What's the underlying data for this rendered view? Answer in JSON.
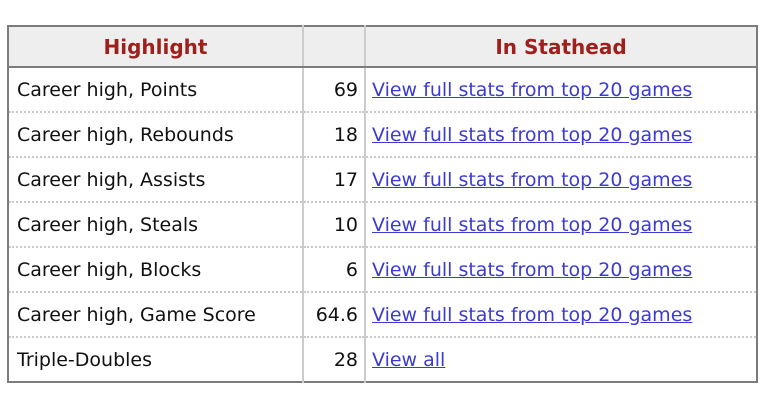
{
  "colors": {
    "accent": "#9e201c",
    "link": "#3b3bd3",
    "outer_border": "#7c7c7c",
    "cell_separator": "#cccccc",
    "row_separator": "#c9c9c9",
    "header_background": "#eeeeee"
  },
  "table": {
    "columns": [
      {
        "label": "Highlight"
      },
      {
        "label": ""
      },
      {
        "label": "In Stathead"
      }
    ],
    "rows": [
      {
        "highlight": "Career high, Points",
        "value": "69",
        "link": "View full stats from top 20 games"
      },
      {
        "highlight": "Career high, Rebounds",
        "value": "18",
        "link": "View full stats from top 20 games"
      },
      {
        "highlight": "Career high, Assists",
        "value": "17",
        "link": "View full stats from top 20 games"
      },
      {
        "highlight": "Career high, Steals",
        "value": "10",
        "link": "View full stats from top 20 games"
      },
      {
        "highlight": "Career high, Blocks",
        "value": "6",
        "link": "View full stats from top 20 games"
      },
      {
        "highlight": "Career high, Game Score",
        "value": "64.6",
        "link": "View full stats from top 20 games"
      },
      {
        "highlight": "Triple-Doubles",
        "value": "28",
        "link": "View all"
      }
    ]
  }
}
